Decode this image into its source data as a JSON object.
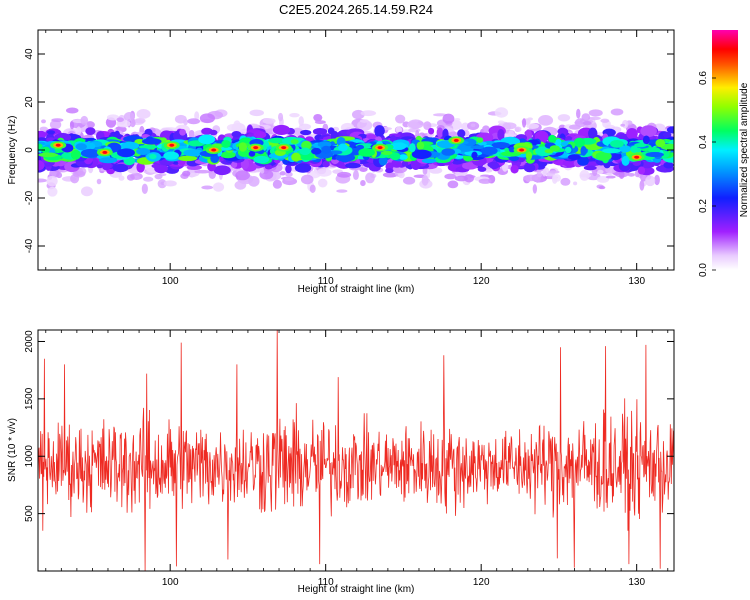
{
  "title": "C2E5.2024.265.14.59.R24",
  "chart_data": [
    {
      "type": "heatmap",
      "xlabel": "Height of straight line (km)",
      "ylabel": "Frequency (Hz)",
      "xlim": [
        91.5,
        132.4
      ],
      "ylim": [
        -50,
        50
      ],
      "xticks": [
        100,
        110,
        120,
        130
      ],
      "yticks": [
        -40,
        -20,
        0,
        20,
        40
      ],
      "grid": false,
      "band": {
        "center_hz": 0,
        "core_halfwidth_hz": 5,
        "outer_halfwidth_hz": 15
      },
      "hotspots": [
        {
          "x": 92.8,
          "y": 2
        },
        {
          "x": 95.8,
          "y": -1
        },
        {
          "x": 100.1,
          "y": 2
        },
        {
          "x": 102.8,
          "y": 0
        },
        {
          "x": 105.5,
          "y": 1
        },
        {
          "x": 107.3,
          "y": 1
        },
        {
          "x": 113.5,
          "y": 1
        },
        {
          "x": 118.4,
          "y": 4
        },
        {
          "x": 122.6,
          "y": 0
        },
        {
          "x": 130.0,
          "y": -3
        }
      ],
      "colorbar": {
        "label": "Normalized spectral amplitude",
        "range": [
          0,
          0.75
        ],
        "ticks": [
          0.0,
          0.2,
          0.4,
          0.6
        ],
        "colors": [
          "#ffffff",
          "#d9a8ff",
          "#8a00ff",
          "#0010ff",
          "#00e5ff",
          "#00ff40",
          "#ffee00",
          "#ff0000",
          "#ff00a0"
        ]
      }
    },
    {
      "type": "line",
      "xlabel": "Height of straight line (km)",
      "ylabel": "SNR (10 * v/v)",
      "xlim": [
        91.5,
        132.4
      ],
      "ylim": [
        0,
        2100
      ],
      "xticks": [
        100,
        110,
        120,
        130
      ],
      "yticks": [
        500,
        1000,
        1500,
        2000
      ],
      "grid": false,
      "color": "#ee2a22",
      "series": [
        {
          "x_start": 91.5,
          "x_end": 132.4,
          "n_points": 1200,
          "mean": 920,
          "envelope_x": [
            91.5,
            95,
            100,
            104,
            107,
            110,
            114,
            118,
            121,
            124,
            128,
            132.4
          ],
          "envelope_amp": [
            330,
            360,
            400,
            330,
            420,
            370,
            300,
            380,
            260,
            360,
            420,
            380
          ],
          "peaks": [
            {
              "x": 91.9,
              "y": 1850
            },
            {
              "x": 93.2,
              "y": 1800
            },
            {
              "x": 98.5,
              "y": 1720
            },
            {
              "x": 100.7,
              "y": 1990
            },
            {
              "x": 104.3,
              "y": 1800
            },
            {
              "x": 106.9,
              "y": 2120
            },
            {
              "x": 109.6,
              "y": 1980
            },
            {
              "x": 110.8,
              "y": 1690
            },
            {
              "x": 117.6,
              "y": 1880
            },
            {
              "x": 125.1,
              "y": 1950
            },
            {
              "x": 128.0,
              "y": 1960
            },
            {
              "x": 130.6,
              "y": 1970
            },
            {
              "x": 91.8,
              "y": 350
            },
            {
              "x": 98.4,
              "y": 0
            },
            {
              "x": 100.4,
              "y": 40
            },
            {
              "x": 103.7,
              "y": 100
            },
            {
              "x": 109.6,
              "y": 60
            },
            {
              "x": 124.9,
              "y": 110
            },
            {
              "x": 126.0,
              "y": 30
            },
            {
              "x": 129.5,
              "y": 60
            },
            {
              "x": 131.5,
              "y": 20
            }
          ]
        }
      ]
    }
  ]
}
